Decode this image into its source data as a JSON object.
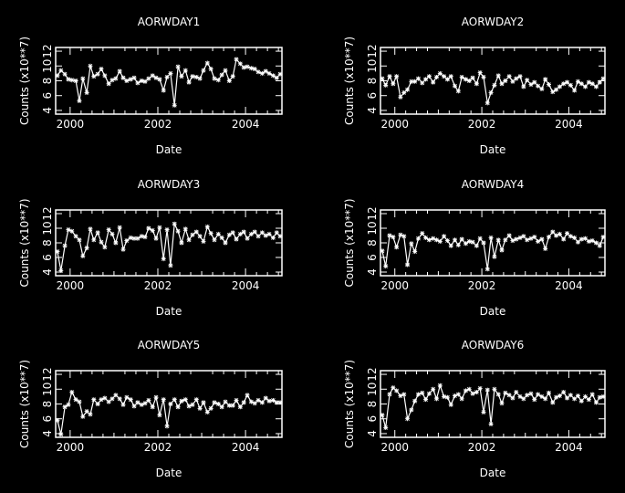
{
  "chart_data": [
    {
      "type": "line",
      "title": "AORWDAY1",
      "xlabel": "Date",
      "ylabel": "Counts (x10**7)",
      "xlim": [
        1999.67,
        2004.83
      ],
      "ylim": [
        3.5,
        12.5
      ],
      "xticks": [
        "2000",
        "2002",
        "2004"
      ],
      "yticks": [
        "4",
        "6",
        "8",
        "10",
        "12"
      ],
      "grid": false,
      "series": [
        {
          "x": [
            1999.71,
            1999.79,
            1999.88,
            1999.96,
            2000.04,
            2000.13,
            2000.21,
            2000.29,
            2000.38,
            2000.46,
            2000.54,
            2000.63,
            2000.71,
            2000.79,
            2000.88,
            2000.96,
            2001.04,
            2001.13,
            2001.21,
            2001.29,
            2001.38,
            2001.46,
            2001.54,
            2001.63,
            2001.71,
            2001.79,
            2001.88,
            2001.96,
            2002.04,
            2002.13,
            2002.21,
            2002.29,
            2002.38,
            2002.46,
            2002.54,
            2002.63,
            2002.71,
            2002.79,
            2002.88,
            2002.96,
            2003.04,
            2003.13,
            2003.21,
            2003.29,
            2003.38,
            2003.46,
            2003.54,
            2003.63,
            2003.71,
            2003.79,
            2003.88,
            2003.96,
            2004.04,
            2004.13,
            2004.21,
            2004.29,
            2004.38,
            2004.46,
            2004.54,
            2004.63,
            2004.71,
            2004.79
          ],
          "y": [
            8.7,
            9.4,
            8.9,
            8.2,
            8.1,
            8.0,
            5.3,
            8.3,
            6.4,
            10.0,
            8.6,
            8.9,
            9.6,
            8.7,
            7.6,
            8.1,
            8.3,
            9.3,
            8.4,
            8.0,
            8.2,
            8.4,
            7.7,
            8.0,
            7.9,
            8.3,
            8.7,
            8.4,
            8.2,
            6.7,
            8.5,
            9.0,
            4.7,
            9.9,
            8.6,
            9.4,
            7.8,
            8.6,
            8.5,
            8.3,
            9.4,
            10.4,
            9.6,
            8.3,
            8.1,
            8.8,
            9.4,
            8.0,
            8.6,
            10.9,
            10.3,
            9.8,
            9.9,
            9.7,
            9.6,
            9.2,
            9.0,
            9.3,
            9.0,
            8.7,
            8.4,
            8.9
          ]
        }
      ]
    },
    {
      "type": "line",
      "title": "AORWDAY2",
      "xlabel": "Date",
      "ylabel": "Counts (x10**7)",
      "xlim": [
        1999.67,
        2004.83
      ],
      "ylim": [
        3.5,
        12.5
      ],
      "xticks": [
        "2000",
        "2002",
        "2004"
      ],
      "yticks": [
        "4",
        "6",
        "8",
        "10",
        "12"
      ],
      "grid": false,
      "series": [
        {
          "x": [
            1999.71,
            1999.79,
            1999.88,
            1999.96,
            2000.04,
            2000.13,
            2000.21,
            2000.29,
            2000.38,
            2000.46,
            2000.54,
            2000.63,
            2000.71,
            2000.79,
            2000.88,
            2000.96,
            2001.04,
            2001.13,
            2001.21,
            2001.29,
            2001.38,
            2001.46,
            2001.54,
            2001.63,
            2001.71,
            2001.79,
            2001.88,
            2001.96,
            2002.04,
            2002.13,
            2002.21,
            2002.29,
            2002.38,
            2002.46,
            2002.54,
            2002.63,
            2002.71,
            2002.79,
            2002.88,
            2002.96,
            2003.04,
            2003.13,
            2003.21,
            2003.29,
            2003.38,
            2003.46,
            2003.54,
            2003.63,
            2003.71,
            2003.79,
            2003.88,
            2003.96,
            2004.04,
            2004.13,
            2004.21,
            2004.29,
            2004.38,
            2004.46,
            2004.54,
            2004.63,
            2004.71,
            2004.79
          ],
          "y": [
            8.3,
            7.4,
            8.6,
            7.6,
            8.6,
            5.8,
            6.4,
            6.8,
            7.9,
            7.9,
            8.3,
            7.7,
            8.2,
            8.6,
            7.8,
            8.5,
            9.0,
            8.6,
            8.2,
            8.6,
            7.3,
            6.6,
            8.5,
            8.2,
            8.0,
            8.4,
            7.6,
            9.1,
            8.5,
            5.0,
            6.4,
            7.4,
            8.7,
            7.6,
            8.0,
            8.6,
            7.9,
            8.3,
            8.6,
            7.2,
            8.1,
            7.5,
            7.8,
            7.3,
            6.9,
            8.2,
            7.5,
            6.5,
            6.8,
            7.2,
            7.6,
            7.8,
            7.4,
            6.7,
            7.9,
            7.6,
            7.2,
            7.8,
            7.6,
            7.2,
            7.8,
            8.3
          ]
        }
      ]
    },
    {
      "type": "line",
      "title": "AORWDAY3",
      "xlabel": "Date",
      "ylabel": "Counts (x10**7)",
      "xlim": [
        1999.67,
        2004.83
      ],
      "ylim": [
        3.5,
        12.5
      ],
      "xticks": [
        "2000",
        "2002",
        "2004"
      ],
      "yticks": [
        "4",
        "6",
        "8",
        "10",
        "12"
      ],
      "grid": false,
      "series": [
        {
          "x": [
            1999.71,
            1999.79,
            1999.88,
            1999.96,
            2000.04,
            2000.13,
            2000.21,
            2000.29,
            2000.38,
            2000.46,
            2000.54,
            2000.63,
            2000.71,
            2000.79,
            2000.88,
            2000.96,
            2001.04,
            2001.13,
            2001.21,
            2001.29,
            2001.38,
            2001.46,
            2001.54,
            2001.63,
            2001.71,
            2001.79,
            2001.88,
            2001.96,
            2002.04,
            2002.13,
            2002.21,
            2002.29,
            2002.38,
            2002.46,
            2002.54,
            2002.63,
            2002.71,
            2002.79,
            2002.88,
            2002.96,
            2003.04,
            2003.13,
            2003.21,
            2003.29,
            2003.38,
            2003.46,
            2003.54,
            2003.63,
            2003.71,
            2003.79,
            2003.88,
            2003.96,
            2004.04,
            2004.13,
            2004.21,
            2004.29,
            2004.38,
            2004.46,
            2004.54,
            2004.63,
            2004.71,
            2004.79
          ],
          "y": [
            6.8,
            4.2,
            7.6,
            9.8,
            9.6,
            8.9,
            8.4,
            6.2,
            7.3,
            9.9,
            8.4,
            9.4,
            8.1,
            7.4,
            9.8,
            9.2,
            8.0,
            10.1,
            7.1,
            8.3,
            8.7,
            8.6,
            8.6,
            8.9,
            8.8,
            10.0,
            9.7,
            8.6,
            10.1,
            5.8,
            9.8,
            4.9,
            10.6,
            9.6,
            8.0,
            9.9,
            8.4,
            9.1,
            9.5,
            8.9,
            8.2,
            10.2,
            9.3,
            8.4,
            9.2,
            8.7,
            8.0,
            9.1,
            9.4,
            8.5,
            9.2,
            9.5,
            8.6,
            9.2,
            9.5,
            8.9,
            9.4,
            9.0,
            9.2,
            8.7,
            9.4,
            8.9
          ]
        }
      ]
    },
    {
      "type": "line",
      "title": "AORWDAY4",
      "xlabel": "Date",
      "ylabel": "Counts (x10**7)",
      "xlim": [
        1999.67,
        2004.83
      ],
      "ylim": [
        3.5,
        12.5
      ],
      "xticks": [
        "2000",
        "2002",
        "2004"
      ],
      "yticks": [
        "4",
        "6",
        "8",
        "10",
        "12"
      ],
      "grid": false,
      "series": [
        {
          "x": [
            1999.71,
            1999.79,
            1999.88,
            1999.96,
            2000.04,
            2000.13,
            2000.21,
            2000.29,
            2000.38,
            2000.46,
            2000.54,
            2000.63,
            2000.71,
            2000.79,
            2000.88,
            2000.96,
            2001.04,
            2001.13,
            2001.21,
            2001.29,
            2001.38,
            2001.46,
            2001.54,
            2001.63,
            2001.71,
            2001.79,
            2001.88,
            2001.96,
            2002.04,
            2002.13,
            2002.21,
            2002.29,
            2002.38,
            2002.46,
            2002.54,
            2002.63,
            2002.71,
            2002.79,
            2002.88,
            2002.96,
            2003.04,
            2003.13,
            2003.21,
            2003.29,
            2003.38,
            2003.46,
            2003.54,
            2003.63,
            2003.71,
            2003.79,
            2003.88,
            2003.96,
            2004.04,
            2004.13,
            2004.21,
            2004.29,
            2004.38,
            2004.46,
            2004.54,
            2004.63,
            2004.71,
            2004.79
          ],
          "y": [
            6.9,
            4.8,
            9.0,
            8.8,
            7.4,
            9.1,
            8.9,
            5.0,
            7.9,
            6.8,
            8.6,
            9.3,
            8.7,
            8.4,
            8.6,
            8.4,
            8.2,
            8.9,
            8.3,
            7.6,
            8.4,
            7.7,
            8.5,
            7.9,
            8.2,
            8.1,
            7.6,
            8.6,
            8.0,
            4.4,
            8.7,
            6.1,
            8.4,
            7.0,
            8.4,
            9.0,
            8.3,
            8.5,
            8.7,
            8.9,
            8.4,
            8.6,
            8.8,
            8.2,
            8.5,
            7.2,
            8.8,
            9.5,
            9.0,
            9.2,
            8.5,
            9.3,
            8.9,
            8.7,
            8.1,
            8.5,
            8.6,
            8.2,
            8.3,
            8.0,
            7.6,
            8.8
          ]
        }
      ]
    },
    {
      "type": "line",
      "title": "AORWDAY5",
      "xlabel": "Date",
      "ylabel": "Counts (x10**7)",
      "xlim": [
        1999.67,
        2004.83
      ],
      "ylim": [
        3.5,
        12.5
      ],
      "xticks": [
        "2000",
        "2002",
        "2004"
      ],
      "yticks": [
        "4",
        "6",
        "8",
        "10",
        "12"
      ],
      "grid": false,
      "series": [
        {
          "x": [
            1999.71,
            1999.79,
            1999.88,
            1999.96,
            2000.04,
            2000.13,
            2000.21,
            2000.29,
            2000.38,
            2000.46,
            2000.54,
            2000.63,
            2000.71,
            2000.79,
            2000.88,
            2000.96,
            2001.04,
            2001.13,
            2001.21,
            2001.29,
            2001.38,
            2001.46,
            2001.54,
            2001.63,
            2001.71,
            2001.79,
            2001.88,
            2001.96,
            2002.04,
            2002.13,
            2002.21,
            2002.29,
            2002.38,
            2002.46,
            2002.54,
            2002.63,
            2002.71,
            2002.79,
            2002.88,
            2002.96,
            2003.04,
            2003.13,
            2003.21,
            2003.29,
            2003.38,
            2003.46,
            2003.54,
            2003.63,
            2003.71,
            2003.79,
            2003.88,
            2003.96,
            2004.04,
            2004.13,
            2004.21,
            2004.29,
            2004.38,
            2004.46,
            2004.54,
            2004.63,
            2004.71,
            2004.79
          ],
          "y": [
            5.8,
            3.9,
            7.6,
            7.9,
            9.6,
            8.6,
            8.3,
            6.3,
            7.0,
            6.6,
            8.6,
            8.0,
            8.6,
            8.8,
            8.3,
            8.7,
            9.2,
            8.7,
            7.9,
            8.9,
            8.6,
            7.7,
            8.2,
            7.9,
            8.1,
            8.5,
            7.6,
            8.9,
            6.5,
            8.6,
            5.0,
            8.0,
            8.6,
            7.6,
            8.4,
            8.6,
            7.7,
            7.9,
            8.6,
            7.4,
            8.2,
            6.9,
            7.4,
            8.2,
            8.0,
            7.6,
            8.3,
            7.8,
            7.8,
            8.5,
            7.6,
            8.2,
            9.2,
            8.3,
            8.1,
            8.5,
            8.2,
            8.8,
            8.4,
            8.5,
            8.2,
            8.2
          ]
        }
      ]
    },
    {
      "type": "line",
      "title": "AORWDAY6",
      "xlabel": "Date",
      "ylabel": "Counts (x10**7)",
      "xlim": [
        1999.67,
        2004.83
      ],
      "ylim": [
        3.5,
        12.5
      ],
      "xticks": [
        "2000",
        "2002",
        "2004"
      ],
      "yticks": [
        "4",
        "6",
        "8",
        "10",
        "12"
      ],
      "grid": false,
      "series": [
        {
          "x": [
            1999.71,
            1999.79,
            1999.88,
            1999.96,
            2000.04,
            2000.13,
            2000.21,
            2000.29,
            2000.38,
            2000.46,
            2000.54,
            2000.63,
            2000.71,
            2000.79,
            2000.88,
            2000.96,
            2001.04,
            2001.13,
            2001.21,
            2001.29,
            2001.38,
            2001.46,
            2001.54,
            2001.63,
            2001.71,
            2001.79,
            2001.88,
            2001.96,
            2002.04,
            2002.13,
            2002.21,
            2002.29,
            2002.38,
            2002.46,
            2002.54,
            2002.63,
            2002.71,
            2002.79,
            2002.88,
            2002.96,
            2003.04,
            2003.13,
            2003.21,
            2003.29,
            2003.38,
            2003.46,
            2003.54,
            2003.63,
            2003.71,
            2003.79,
            2003.88,
            2003.96,
            2004.04,
            2004.13,
            2004.21,
            2004.29,
            2004.38,
            2004.46,
            2004.54,
            2004.63,
            2004.71,
            2004.79
          ],
          "y": [
            6.5,
            4.8,
            9.3,
            10.2,
            9.8,
            9.1,
            9.3,
            6.0,
            7.2,
            8.4,
            9.3,
            9.5,
            8.6,
            9.4,
            10.0,
            8.7,
            10.5,
            9.0,
            8.9,
            7.9,
            9.1,
            9.3,
            8.7,
            9.8,
            10.0,
            9.4,
            9.6,
            10.1,
            6.9,
            9.9,
            5.3,
            10.0,
            9.3,
            8.1,
            9.5,
            9.2,
            8.8,
            9.6,
            9.0,
            8.7,
            9.2,
            9.4,
            8.6,
            9.3,
            9.0,
            8.7,
            9.5,
            8.2,
            8.9,
            9.1,
            9.6,
            8.8,
            9.2,
            8.7,
            9.1,
            8.4,
            9.0,
            8.6,
            9.3,
            8.2,
            8.9,
            9.0
          ]
        }
      ]
    }
  ]
}
